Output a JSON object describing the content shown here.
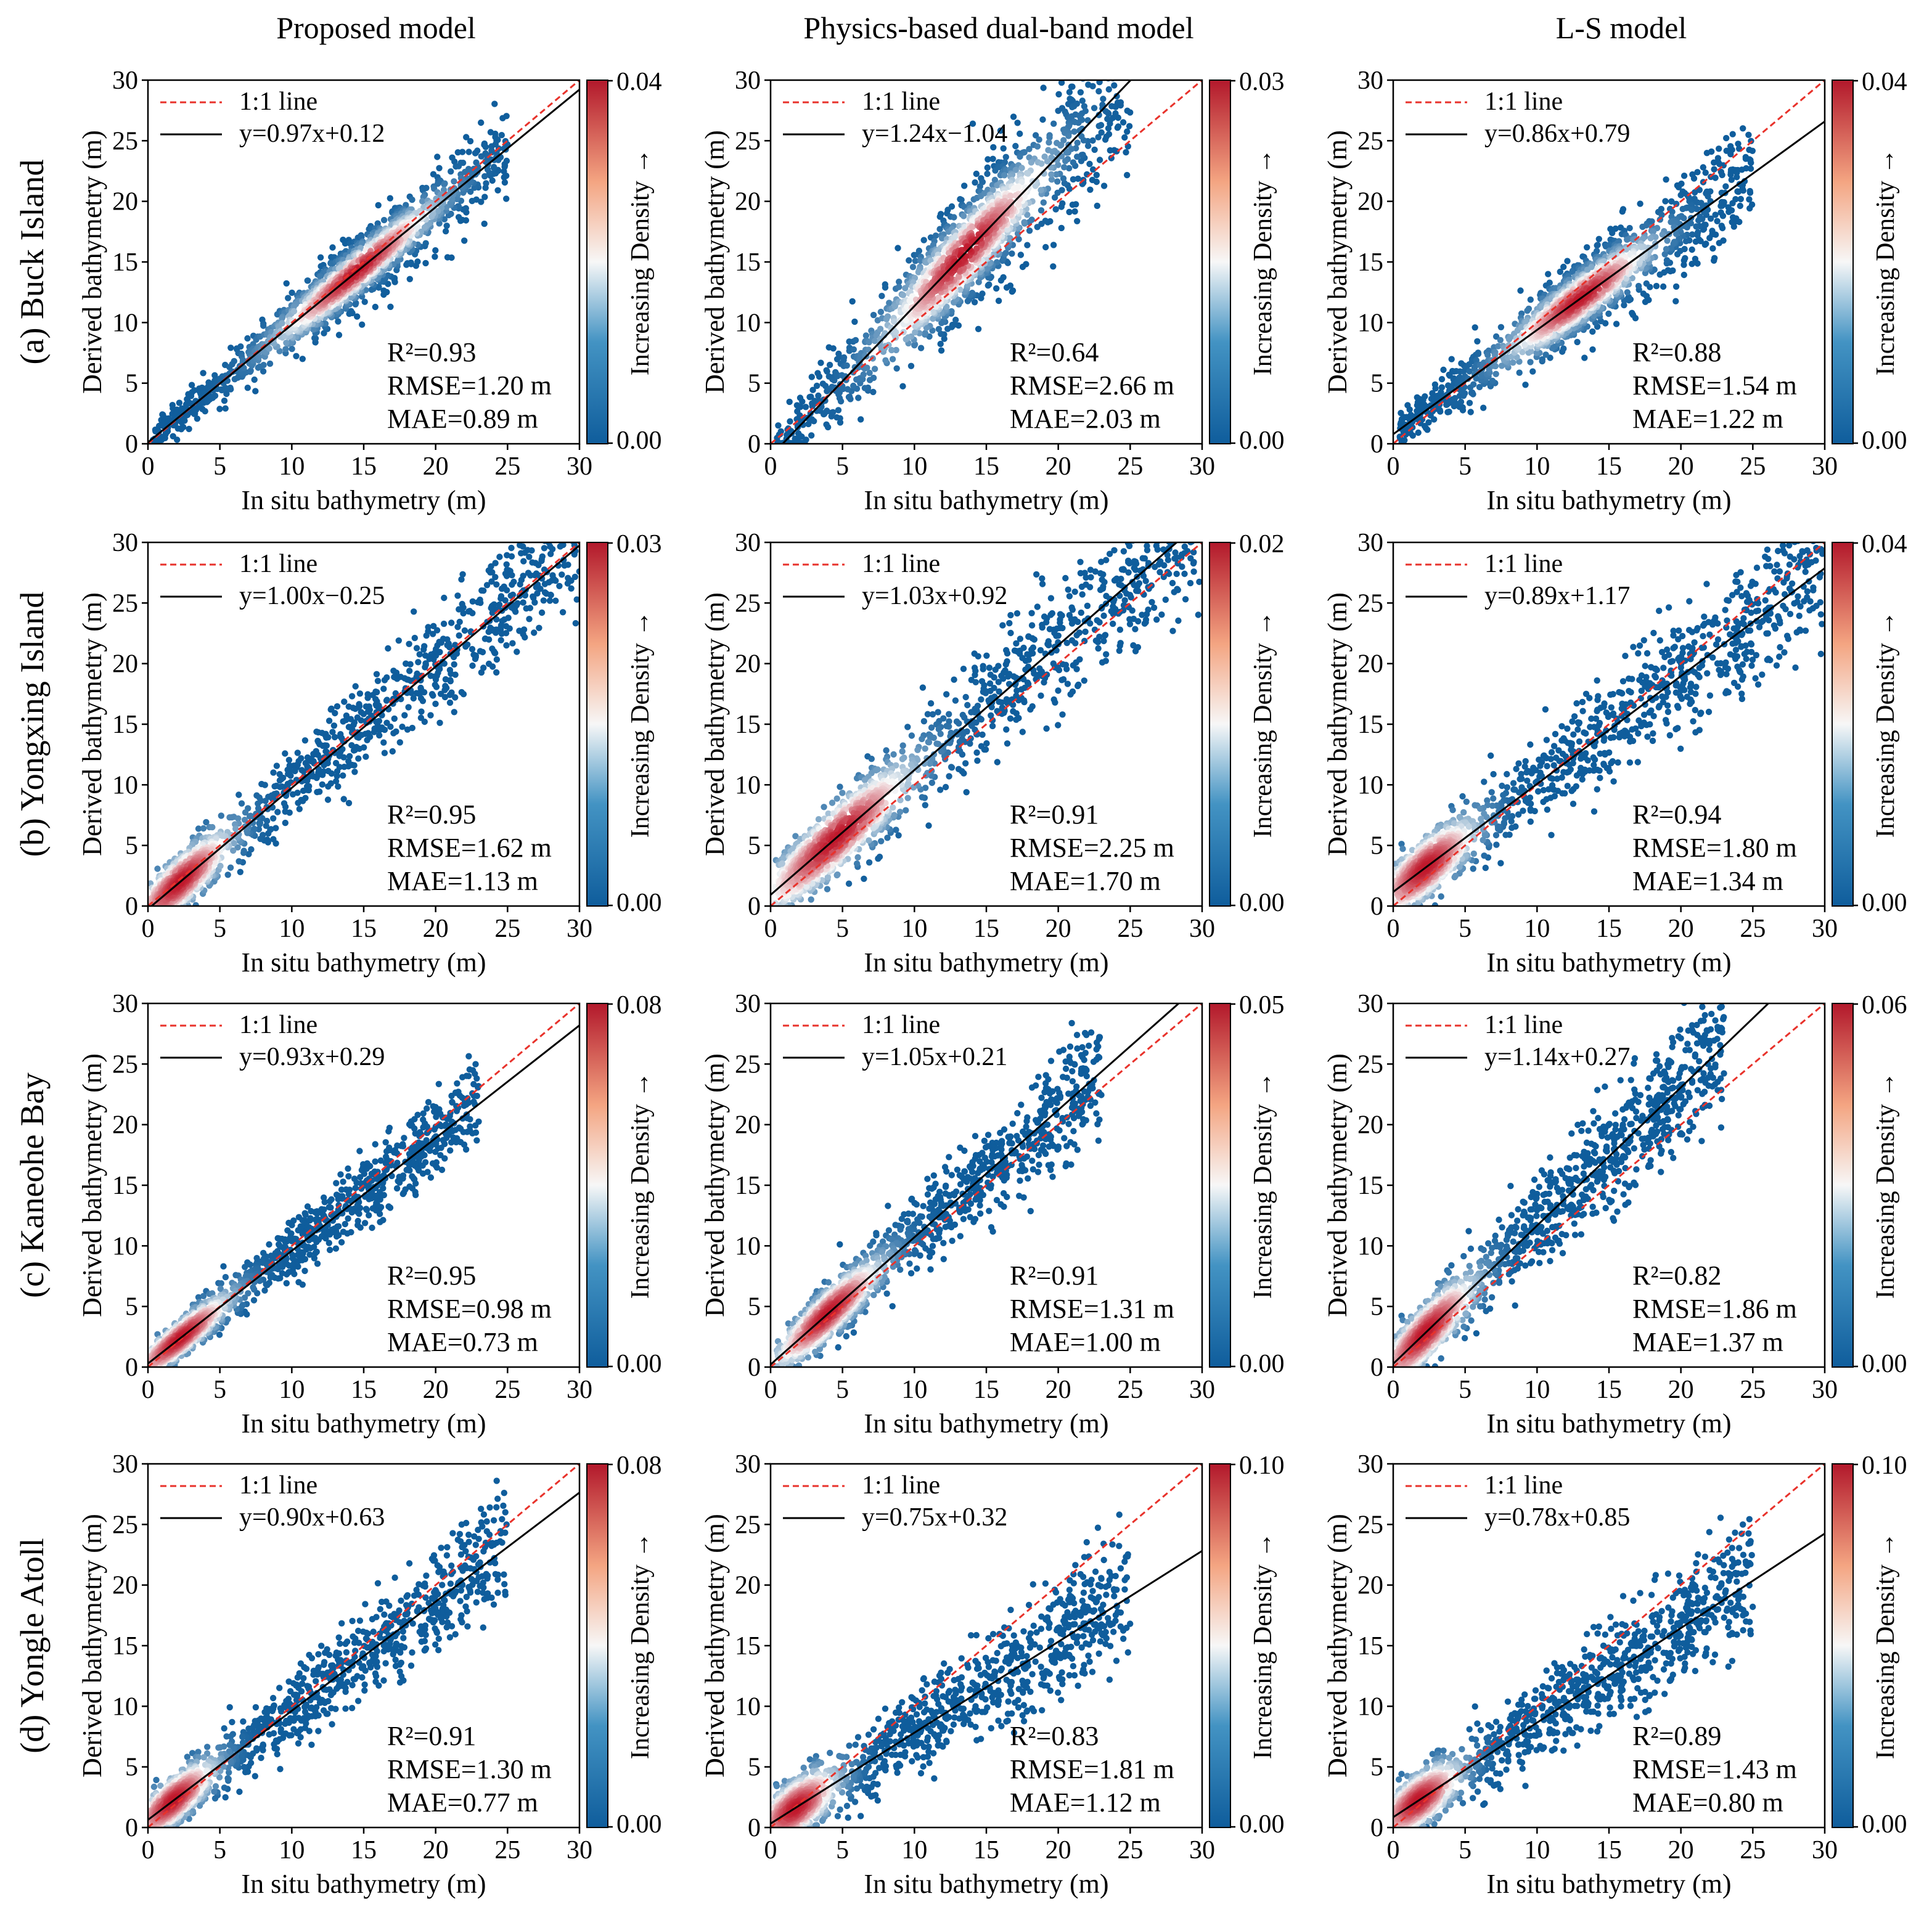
{
  "figure": {
    "columns": [
      "Proposed model",
      "Physics-based dual-band model",
      "L-S model"
    ],
    "rows": [
      "(a) Buck Island",
      "(b) Yongxing Island",
      "(c) Kaneohe Bay",
      "(d) Yongle Atoll"
    ],
    "xlabel": "In situ bathymetry (m)",
    "ylabel": "Derived bathymetry (m)",
    "colorbar_label": "Increasing Density →",
    "legend_identity": "1:1 line"
  },
  "colors": {
    "identity_line": "#e8322b",
    "fit_line": "#000000",
    "density_low": "#0f5d9c",
    "density_mid": "#f7f7f7",
    "density_high": "#c0182b"
  },
  "chart_data": [
    {
      "type": "scatter",
      "row": 0,
      "col": 0,
      "site": "Buck Island",
      "model": "Proposed model",
      "xlim": [
        0,
        30
      ],
      "ylim": [
        0,
        30
      ],
      "ticks": [
        0,
        5,
        10,
        15,
        20,
        25,
        30
      ],
      "fit": {
        "slope": 0.97,
        "intercept": 0.12,
        "label": "y=0.97x+0.12"
      },
      "stats": {
        "r2": "R²=0.93",
        "rmse": "RMSE=1.20 m",
        "mae": "MAE=0.89 m"
      },
      "colorbar": {
        "max": "0.04",
        "min": "0.00"
      },
      "spread": 1.3,
      "xmax": 25,
      "density_focus": [
        11,
        18
      ]
    },
    {
      "type": "scatter",
      "row": 0,
      "col": 1,
      "site": "Buck Island",
      "model": "Physics-based dual-band model",
      "xlim": [
        0,
        30
      ],
      "ylim": [
        0,
        30
      ],
      "ticks": [
        0,
        5,
        10,
        15,
        20,
        25,
        30
      ],
      "fit": {
        "slope": 1.24,
        "intercept": -1.04,
        "label": "y=1.24x−1.04"
      },
      "stats": {
        "r2": "R²=0.64",
        "rmse": "RMSE=2.66 m",
        "mae": "MAE=2.03 m"
      },
      "colorbar": {
        "max": "0.03",
        "min": "0.00"
      },
      "spread": 2.2,
      "xmax": 25,
      "density_focus": [
        10,
        17
      ]
    },
    {
      "type": "scatter",
      "row": 0,
      "col": 2,
      "site": "Buck Island",
      "model": "L-S model",
      "xlim": [
        0,
        30
      ],
      "ylim": [
        0,
        30
      ],
      "ticks": [
        0,
        5,
        10,
        15,
        20,
        25,
        30
      ],
      "fit": {
        "slope": 0.86,
        "intercept": 0.79,
        "label": "y=0.86x+0.79"
      },
      "stats": {
        "r2": "R²=0.88",
        "rmse": "RMSE=1.54 m",
        "mae": "MAE=1.22 m"
      },
      "colorbar": {
        "max": "0.04",
        "min": "0.00"
      },
      "spread": 1.5,
      "xmax": 25,
      "density_focus": [
        10,
        16
      ]
    },
    {
      "type": "scatter",
      "row": 1,
      "col": 0,
      "site": "Yongxing Island",
      "model": "Proposed model",
      "xlim": [
        0,
        30
      ],
      "ylim": [
        0,
        30
      ],
      "ticks": [
        0,
        5,
        10,
        15,
        20,
        25,
        30
      ],
      "fit": {
        "slope": 1.0,
        "intercept": -0.25,
        "label": "y=1.00x−0.25"
      },
      "stats": {
        "r2": "R²=0.95",
        "rmse": "RMSE=1.62 m",
        "mae": "MAE=1.13 m"
      },
      "colorbar": {
        "max": "0.03",
        "min": "0.00"
      },
      "spread": 1.8,
      "xmax": 30,
      "density_focus": [
        0.5,
        4
      ]
    },
    {
      "type": "scatter",
      "row": 1,
      "col": 1,
      "site": "Yongxing Island",
      "model": "Physics-based dual-band model",
      "xlim": [
        0,
        30
      ],
      "ylim": [
        0,
        30
      ],
      "ticks": [
        0,
        5,
        10,
        15,
        20,
        25,
        30
      ],
      "fit": {
        "slope": 1.03,
        "intercept": 0.92,
        "label": "y=1.03x+0.92"
      },
      "stats": {
        "r2": "R²=0.91",
        "rmse": "RMSE=2.25 m",
        "mae": "MAE=1.70 m"
      },
      "colorbar": {
        "max": "0.02",
        "min": "0.00"
      },
      "spread": 2.2,
      "xmax": 30,
      "density_focus": [
        1,
        8
      ]
    },
    {
      "type": "scatter",
      "row": 1,
      "col": 2,
      "site": "Yongxing Island",
      "model": "L-S model",
      "xlim": [
        0,
        30
      ],
      "ylim": [
        0,
        30
      ],
      "ticks": [
        0,
        5,
        10,
        15,
        20,
        25,
        30
      ],
      "fit": {
        "slope": 0.89,
        "intercept": 1.17,
        "label": "y=0.89x+1.17"
      },
      "stats": {
        "r2": "R²=0.94",
        "rmse": "RMSE=1.80 m",
        "mae": "MAE=1.34 m"
      },
      "colorbar": {
        "max": "0.04",
        "min": "0.00"
      },
      "spread": 2.0,
      "xmax": 30,
      "density_focus": [
        0.5,
        4
      ]
    },
    {
      "type": "scatter",
      "row": 2,
      "col": 0,
      "site": "Kaneohe Bay",
      "model": "Proposed model",
      "xlim": [
        0,
        30
      ],
      "ylim": [
        0,
        30
      ],
      "ticks": [
        0,
        5,
        10,
        15,
        20,
        25,
        30
      ],
      "fit": {
        "slope": 0.93,
        "intercept": 0.29,
        "label": "y=0.93x+0.29"
      },
      "stats": {
        "r2": "R²=0.95",
        "rmse": "RMSE=0.98 m",
        "mae": "MAE=0.73 m"
      },
      "colorbar": {
        "max": "0.08",
        "min": "0.00"
      },
      "spread": 1.2,
      "xmax": 23,
      "density_focus": [
        0.5,
        4
      ]
    },
    {
      "type": "scatter",
      "row": 2,
      "col": 1,
      "site": "Kaneohe Bay",
      "model": "Physics-based dual-band model",
      "xlim": [
        0,
        30
      ],
      "ylim": [
        0,
        30
      ],
      "ticks": [
        0,
        5,
        10,
        15,
        20,
        25,
        30
      ],
      "fit": {
        "slope": 1.05,
        "intercept": 0.21,
        "label": "y=1.05x+0.21"
      },
      "stats": {
        "r2": "R²=0.91",
        "rmse": "RMSE=1.31 m",
        "mae": "MAE=1.00 m"
      },
      "colorbar": {
        "max": "0.05",
        "min": "0.00"
      },
      "spread": 1.6,
      "xmax": 23,
      "density_focus": [
        2,
        6
      ]
    },
    {
      "type": "scatter",
      "row": 2,
      "col": 2,
      "site": "Kaneohe Bay",
      "model": "L-S model",
      "xlim": [
        0,
        30
      ],
      "ylim": [
        0,
        30
      ],
      "ticks": [
        0,
        5,
        10,
        15,
        20,
        25,
        30
      ],
      "fit": {
        "slope": 1.14,
        "intercept": 0.27,
        "label": "y=1.14x+0.27"
      },
      "stats": {
        "r2": "R²=0.82",
        "rmse": "RMSE=1.86 m",
        "mae": "MAE=1.37 m"
      },
      "colorbar": {
        "max": "0.06",
        "min": "0.00"
      },
      "spread": 1.9,
      "xmax": 23,
      "density_focus": [
        0.5,
        4
      ]
    },
    {
      "type": "scatter",
      "row": 3,
      "col": 0,
      "site": "Yongle Atoll",
      "model": "Proposed model",
      "xlim": [
        0,
        30
      ],
      "ylim": [
        0,
        30
      ],
      "ticks": [
        0,
        5,
        10,
        15,
        20,
        25,
        30
      ],
      "fit": {
        "slope": 0.9,
        "intercept": 0.63,
        "label": "y=0.90x+0.63"
      },
      "stats": {
        "r2": "R²=0.91",
        "rmse": "RMSE=1.30 m",
        "mae": "MAE=0.77 m"
      },
      "colorbar": {
        "max": "0.08",
        "min": "0.00"
      },
      "spread": 1.6,
      "xmax": 25,
      "density_focus": [
        0.5,
        3
      ]
    },
    {
      "type": "scatter",
      "row": 3,
      "col": 1,
      "site": "Yongle Atoll",
      "model": "Physics-based dual-band model",
      "xlim": [
        0,
        30
      ],
      "ylim": [
        0,
        30
      ],
      "ticks": [
        0,
        5,
        10,
        15,
        20,
        25,
        30
      ],
      "fit": {
        "slope": 0.75,
        "intercept": 0.32,
        "label": "y=0.75x+0.32"
      },
      "stats": {
        "r2": "R²=0.83",
        "rmse": "RMSE=1.81 m",
        "mae": "MAE=1.12 m"
      },
      "colorbar": {
        "max": "0.10",
        "min": "0.00"
      },
      "spread": 1.9,
      "xmax": 25,
      "density_focus": [
        0.5,
        3
      ]
    },
    {
      "type": "scatter",
      "row": 3,
      "col": 2,
      "site": "Yongle Atoll",
      "model": "L-S model",
      "xlim": [
        0,
        30
      ],
      "ylim": [
        0,
        30
      ],
      "ticks": [
        0,
        5,
        10,
        15,
        20,
        25,
        30
      ],
      "fit": {
        "slope": 0.78,
        "intercept": 0.85,
        "label": "y=0.78x+0.85"
      },
      "stats": {
        "r2": "R²=0.89",
        "rmse": "RMSE=1.43 m",
        "mae": "MAE=0.80 m"
      },
      "colorbar": {
        "max": "0.10",
        "min": "0.00"
      },
      "spread": 1.8,
      "xmax": 25,
      "density_focus": [
        0.5,
        3
      ]
    }
  ]
}
